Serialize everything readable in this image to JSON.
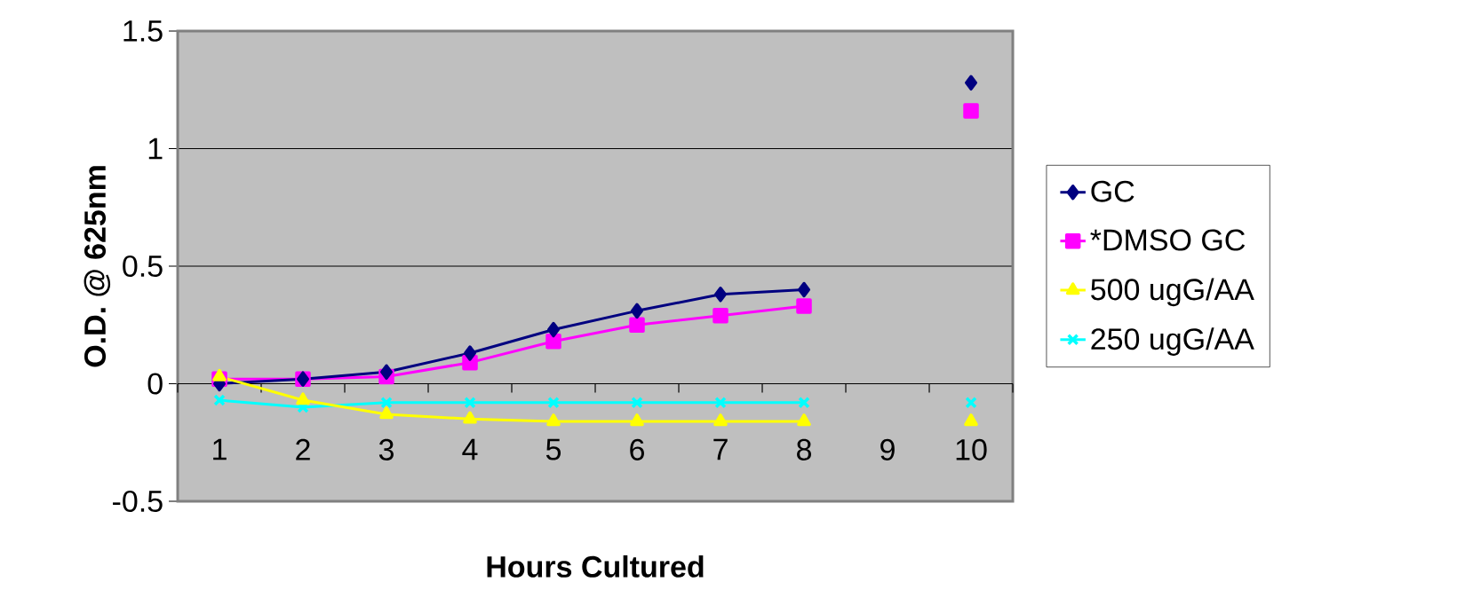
{
  "chart_data": {
    "type": "line",
    "xlabel": "Hours Cultured",
    "ylabel": "O.D. @ 625nm",
    "categories": [
      "1",
      "2",
      "3",
      "4",
      "5",
      "6",
      "7",
      "8",
      "9",
      "10"
    ],
    "series": [
      {
        "name": "GC",
        "color": "#000080",
        "marker": "diamond",
        "values": [
          0.0,
          0.02,
          0.05,
          0.13,
          0.23,
          0.31,
          0.38,
          0.4,
          null,
          1.28
        ]
      },
      {
        "name": "*DMSO GC",
        "color": "#ff00ff",
        "marker": "square",
        "values": [
          0.02,
          0.02,
          0.03,
          0.09,
          0.18,
          0.25,
          0.29,
          0.33,
          null,
          1.16
        ]
      },
      {
        "name": "500 ugG/AA",
        "color": "#ffff00",
        "marker": "triangle",
        "values": [
          0.03,
          -0.07,
          -0.13,
          -0.15,
          -0.16,
          -0.16,
          -0.16,
          -0.16,
          null,
          -0.16
        ]
      },
      {
        "name": "250 ugG/AA",
        "color": "#00ffff",
        "marker": "cross",
        "values": [
          -0.07,
          -0.1,
          -0.08,
          -0.08,
          -0.08,
          -0.08,
          -0.08,
          -0.08,
          null,
          -0.08
        ]
      }
    ],
    "ylim": [
      -0.5,
      1.5
    ],
    "yticks": [
      -0.5,
      0,
      0.5,
      1,
      1.5
    ],
    "grid": "y",
    "legend": "right",
    "line_style": "solid"
  }
}
